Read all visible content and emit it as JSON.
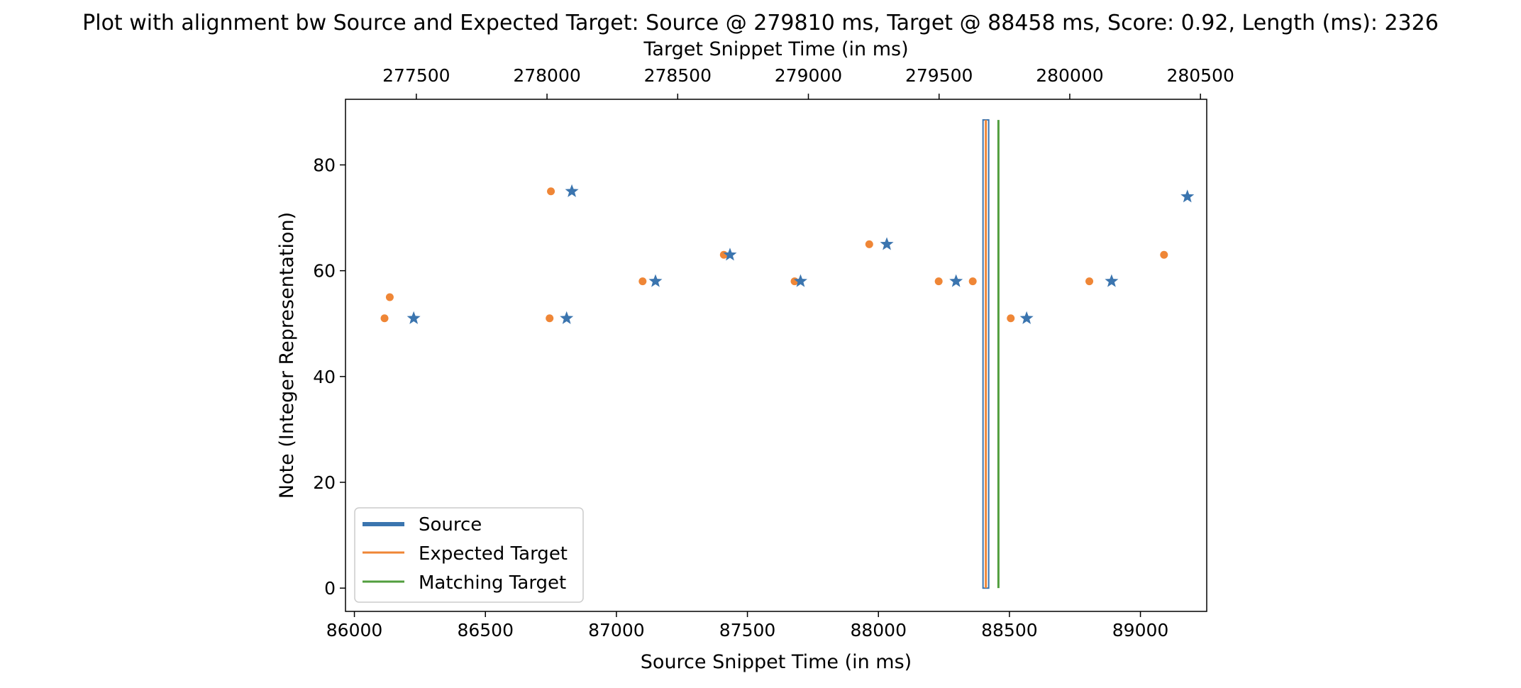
{
  "chart_data": {
    "type": "scatter",
    "title": "Plot with alignment bw Source and Expected Target: Source @ 279810 ms, Target @ 88458 ms, Score: 0.92, Length (ms): 2326",
    "xlabel": "Source Snippet Time (in ms)",
    "xlabel_top": "Target Snippet Time (in ms)",
    "ylabel": "Note (Integer Representation)",
    "xlim": [
      85966,
      89253
    ],
    "ylim": [
      -4.4,
      92.4
    ],
    "xlim_top": [
      277229,
      280524
    ],
    "x_ticks": [
      86000,
      86500,
      87000,
      87500,
      88000,
      88500,
      89000
    ],
    "x_tick_labels": [
      "86000",
      "86500",
      "87000",
      "87500",
      "88000",
      "88500",
      "89000"
    ],
    "x_ticks_top": [
      277500,
      278000,
      278500,
      279000,
      279500,
      280000,
      280500
    ],
    "x_tick_labels_top": [
      "277500",
      "278000",
      "278500",
      "279000",
      "279500",
      "280000",
      "280500"
    ],
    "y_ticks": [
      0,
      20,
      40,
      60,
      80
    ],
    "y_tick_labels": [
      "0",
      "20",
      "40",
      "60",
      "80"
    ],
    "grid": false,
    "legend_position": "lower-left",
    "legend": [
      {
        "label": "Source",
        "color": "#3b75af",
        "style": "thick-line"
      },
      {
        "label": "Expected Target",
        "color": "#ef8636",
        "style": "line"
      },
      {
        "label": "Matching Target",
        "color": "#519e3e",
        "style": "line"
      }
    ],
    "series": [
      {
        "name": "Source",
        "axis": "top",
        "marker": "star",
        "color": "#3b75af",
        "points": [
          {
            "x": 277490,
            "y": 51
          },
          {
            "x": 278075,
            "y": 51
          },
          {
            "x": 278095,
            "y": 75
          },
          {
            "x": 278415,
            "y": 58
          },
          {
            "x": 278700,
            "y": 63
          },
          {
            "x": 278970,
            "y": 58
          },
          {
            "x": 279300,
            "y": 65
          },
          {
            "x": 279565,
            "y": 58
          },
          {
            "x": 279835,
            "y": 51
          },
          {
            "x": 280160,
            "y": 58
          },
          {
            "x": 280450,
            "y": 74
          }
        ]
      },
      {
        "name": "Expected Target",
        "axis": "bottom",
        "marker": "dot",
        "color": "#ef8636",
        "points": [
          {
            "x": 86115,
            "y": 51
          },
          {
            "x": 86135,
            "y": 55
          },
          {
            "x": 86745,
            "y": 51
          },
          {
            "x": 86750,
            "y": 75
          },
          {
            "x": 87100,
            "y": 58
          },
          {
            "x": 87410,
            "y": 63
          },
          {
            "x": 87680,
            "y": 58
          },
          {
            "x": 87965,
            "y": 65
          },
          {
            "x": 88230,
            "y": 58
          },
          {
            "x": 88360,
            "y": 58
          },
          {
            "x": 88505,
            "y": 51
          },
          {
            "x": 88805,
            "y": 58
          },
          {
            "x": 89090,
            "y": 63
          }
        ]
      }
    ],
    "vertical_lines": [
      {
        "name": "Source",
        "axis": "bottom",
        "x": 88410,
        "ymin": 0,
        "ymax": 88.5,
        "color": "#3b75af",
        "style": "thick"
      },
      {
        "name": "Expected Target",
        "axis": "bottom",
        "x": 88410,
        "ymin": 0,
        "ymax": 88.5,
        "color": "#ef8636",
        "style": "thin"
      },
      {
        "name": "Matching Target",
        "axis": "bottom",
        "x": 88458,
        "ymin": 0,
        "ymax": 88.5,
        "color": "#519e3e",
        "style": "thin"
      }
    ]
  }
}
